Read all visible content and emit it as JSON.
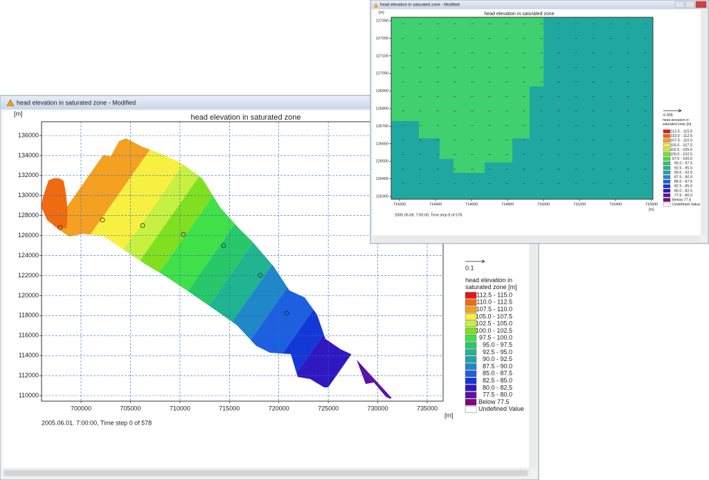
{
  "windows": [
    {
      "title": "head elevation in saturated zone - Modified",
      "chart_title": "head elevation in saturated zone",
      "y_unit": "[m]",
      "x_unit": "[m]",
      "yticks": [
        110000,
        112000,
        114000,
        116000,
        118000,
        120000,
        122000,
        124000,
        126000,
        128000,
        130000,
        132000,
        134000,
        136000
      ],
      "xticks": [
        700000,
        705000,
        710000,
        715000,
        720000,
        725000,
        730000,
        735000
      ],
      "status": "2005.06.01. 7:00:00, Time step 0 of 578",
      "legend": {
        "vector_scale": "0.1",
        "title": "head elevation in saturated zone [m]",
        "items": [
          {
            "label": "112.5 - 115.0",
            "color": "#e8141c"
          },
          {
            "label": "110.0 - 112.5",
            "color": "#f06a10"
          },
          {
            "label": "107.5 - 110.0",
            "color": "#f4a020"
          },
          {
            "label": "105.0 - 107.5",
            "color": "#f8f040"
          },
          {
            "label": "102.5 - 105.0",
            "color": "#c8f040"
          },
          {
            "label": "100.0 - 102.5",
            "color": "#80e020"
          },
          {
            "label": "97.5 - 100.0",
            "color": "#40e048"
          },
          {
            "label": "95.0 - 97.5",
            "color": "#28c868"
          },
          {
            "label": "92.5 - 95.0",
            "color": "#20b490"
          },
          {
            "label": "90.0 - 92.5",
            "color": "#20a4a8"
          },
          {
            "label": "87.5 - 90.0",
            "color": "#2088c8"
          },
          {
            "label": "85.0 - 87.5",
            "color": "#1c60e0"
          },
          {
            "label": "82.5 - 85.0",
            "color": "#1438d8"
          },
          {
            "label": "80.0 - 82.5",
            "color": "#3018c0"
          },
          {
            "label": "77.5 - 80.0",
            "color": "#5c10a8"
          },
          {
            "label": "Below 77.5",
            "color": "#800080"
          },
          {
            "label": "Undefined Value",
            "color": "#ffffff"
          }
        ]
      }
    },
    {
      "title": "head elevation in saturated zone - Modified",
      "chart_title": "head elevation in saturated zone",
      "y_unit": "[m]",
      "x_unit": "[m]",
      "yticks": [
        126300,
        126400,
        126500,
        126600,
        126700,
        126800,
        126900,
        127000,
        127100,
        127200,
        127300
      ],
      "xticks": [
        714200,
        714400,
        714600,
        714800,
        715000,
        715200,
        715400,
        715600
      ],
      "status": "2005.06.08. 7:00:00, Time step 8 of 578",
      "legend": {
        "vector_scale": "0.005",
        "title": "head elevation in saturated zone [m]",
        "items": [
          {
            "label": "112.5 - 115.0",
            "color": "#e8141c"
          },
          {
            "label": "110.0 - 112.5",
            "color": "#f06a10"
          },
          {
            "label": "107.5 - 110.0",
            "color": "#f4a020"
          },
          {
            "label": "105.0 - 107.5",
            "color": "#f8f040"
          },
          {
            "label": "102.5 - 105.0",
            "color": "#c8f040"
          },
          {
            "label": "100.0 - 102.5",
            "color": "#80e020"
          },
          {
            "label": "97.5 - 100.0",
            "color": "#40e048"
          },
          {
            "label": "95.0 - 97.5",
            "color": "#28c868"
          },
          {
            "label": "92.5 - 95.0",
            "color": "#20b490"
          },
          {
            "label": "90.0 - 92.5",
            "color": "#20a4a8"
          },
          {
            "label": "87.5 - 90.0",
            "color": "#2088c8"
          },
          {
            "label": "85.0 - 87.5",
            "color": "#1c60e0"
          },
          {
            "label": "82.5 - 85.0",
            "color": "#1438d8"
          },
          {
            "label": "80.0 - 82.5",
            "color": "#3018c0"
          },
          {
            "label": "77.5 - 80.0",
            "color": "#5c10a8"
          },
          {
            "label": "Below 77.5",
            "color": "#800080"
          },
          {
            "label": "Undefined Value",
            "color": "#ffffff"
          }
        ]
      }
    }
  ]
}
